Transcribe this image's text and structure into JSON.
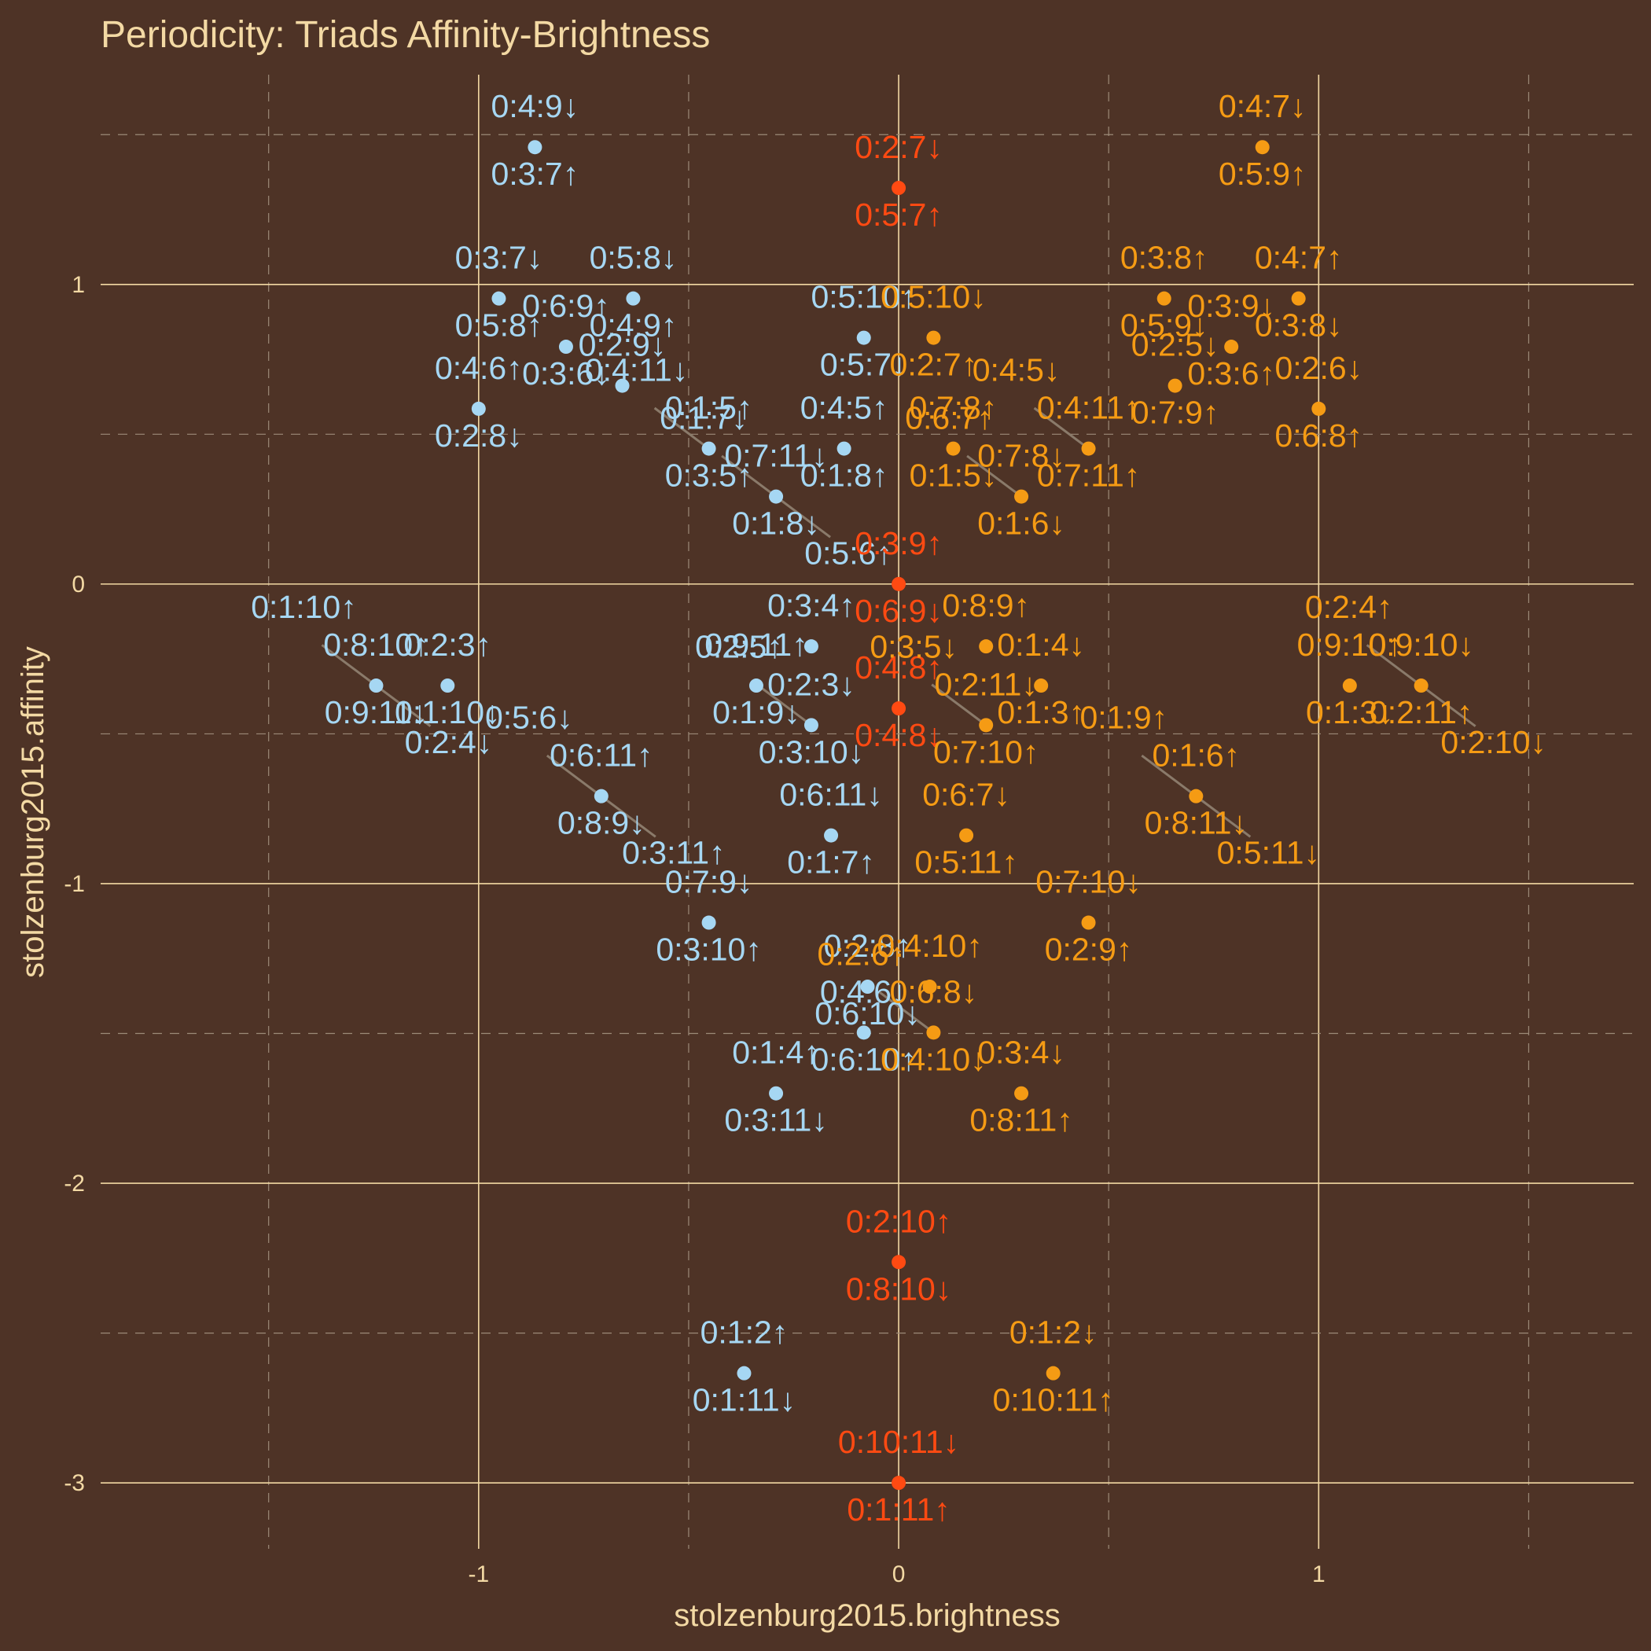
{
  "chart_data": {
    "type": "scatter",
    "title": "Periodicity: Triads Affinity-Brightness",
    "xlabel": "stolzenburg2015.brightness",
    "ylabel": "stolzenburg2015.affinity",
    "xlim": [
      -1.9,
      1.75
    ],
    "ylim": [
      -3.22,
      1.7
    ],
    "x_ticks": [
      {
        "value": -1,
        "label": "-1"
      },
      {
        "value": 0,
        "label": "0"
      },
      {
        "value": 1,
        "label": "1"
      }
    ],
    "y_ticks": [
      {
        "value": 1,
        "label": "1"
      },
      {
        "value": 0,
        "label": "0"
      },
      {
        "value": -1,
        "label": "-1"
      },
      {
        "value": -2,
        "label": "-2"
      },
      {
        "value": -3,
        "label": "-3"
      }
    ],
    "grid": true,
    "legend": "none",
    "colors": {
      "background": "#4e3326",
      "grid_major": "#f3d9a4",
      "grid_minor": "#9c8a78",
      "text": "#f3d9a4",
      "series_negative": "#a6d7f3",
      "series_zero": "#ff4a12",
      "series_positive": "#f59b14",
      "connector": "#8a7a6a"
    },
    "points": [
      {
        "x": -0.866,
        "y": 1.458,
        "color": "negative",
        "labels": [
          "0:4:9↓",
          "0:3:7↑"
        ]
      },
      {
        "x": -0.952,
        "y": 0.953,
        "color": "negative",
        "labels": [
          "0:3:7↓",
          "0:5:8↑"
        ]
      },
      {
        "x": -0.632,
        "y": 0.953,
        "color": "negative",
        "labels": [
          "0:5:8↓",
          "0:4:9↑"
        ]
      },
      {
        "x": -0.792,
        "y": 0.792,
        "color": "negative",
        "labels": [
          "0:6:9↑",
          "0:3:6↓"
        ]
      },
      {
        "x": -0.658,
        "y": 0.662,
        "color": "negative",
        "labels": [
          "0:2:9↓"
        ]
      },
      {
        "x": -1.0,
        "y": 0.585,
        "color": "negative",
        "labels": [
          "0:4:6↑",
          "0:2:8↓"
        ]
      },
      {
        "x": -0.452,
        "y": 0.452,
        "color": "negative",
        "labels": [
          "0:1:5↑",
          "0:3:5↑",
          "0:4:11↓"
        ]
      },
      {
        "x": -0.083,
        "y": 0.822,
        "color": "negative",
        "labels": [
          "0:5:10↑",
          "0:5:7↓"
        ]
      },
      {
        "x": -0.13,
        "y": 0.452,
        "color": "negative",
        "labels": [
          "0:4:5↑",
          "0:1:8↑"
        ]
      },
      {
        "x": -0.292,
        "y": 0.292,
        "color": "negative",
        "labels": [
          "0:7:11↓",
          "0:1:8↓",
          "0:1:7↓",
          "0:5:6↑"
        ]
      },
      {
        "x": -0.208,
        "y": -0.208,
        "color": "negative",
        "labels": [
          "0:3:4↑"
        ]
      },
      {
        "x": -1.244,
        "y": -0.339,
        "color": "negative",
        "labels": [
          "0:8:10↑",
          "0:9:11↓",
          "0:1:10↑",
          "0:2:4↓"
        ]
      },
      {
        "x": -1.074,
        "y": -0.339,
        "color": "negative",
        "labels": [
          "0:2:3↑",
          "0:1:10↓"
        ]
      },
      {
        "x": -0.339,
        "y": -0.339,
        "color": "negative",
        "labels": [
          "0:9:11↑",
          "0:1:9↓"
        ]
      },
      {
        "x": -0.208,
        "y": -0.471,
        "color": "negative",
        "labels": [
          "0:2:3↓",
          "0:3:10↓",
          "0:2:5↑"
        ]
      },
      {
        "x": -0.708,
        "y": -0.708,
        "color": "negative",
        "labels": [
          "0:6:11↑",
          "0:8:9↓",
          "0:5:6↓",
          "0:3:11↑"
        ]
      },
      {
        "x": -0.161,
        "y": -0.839,
        "color": "negative",
        "labels": [
          "0:6:11↓",
          "0:1:7↑"
        ]
      },
      {
        "x": -0.452,
        "y": -1.13,
        "color": "negative",
        "labels": [
          "0:7:9↓",
          "0:3:10↑"
        ]
      },
      {
        "x": -0.074,
        "y": -1.344,
        "color": "negative",
        "labels": [
          "0:2:8↑",
          "0:6:10↓"
        ]
      },
      {
        "x": -0.083,
        "y": -1.497,
        "color": "negative",
        "labels": [
          "0:4:6↓",
          "0:6:10↑"
        ]
      },
      {
        "x": -0.292,
        "y": -1.7,
        "color": "negative",
        "labels": [
          "0:1:4↑",
          "0:3:11↓"
        ]
      },
      {
        "x": -0.368,
        "y": -2.634,
        "color": "negative",
        "labels": [
          "0:1:2↑",
          "0:1:11↓"
        ]
      },
      {
        "x": 0.0,
        "y": 1.322,
        "color": "zero",
        "labels": [
          "0:2:7↓",
          "0:5:7↑"
        ]
      },
      {
        "x": 0.0,
        "y": 0.0,
        "color": "zero",
        "labels": [
          "0:3:9↑",
          "0:6:9↓"
        ]
      },
      {
        "x": 0.0,
        "y": -0.415,
        "color": "zero",
        "labels": [
          "0:4:8↑",
          "0:4:8↓"
        ]
      },
      {
        "x": 0.0,
        "y": -2.263,
        "color": "zero",
        "labels": [
          "0:2:10↑",
          "0:8:10↓"
        ]
      },
      {
        "x": 0.0,
        "y": -3.0,
        "color": "zero",
        "labels": [
          "0:10:11↓",
          "0:1:11↑"
        ]
      },
      {
        "x": 0.866,
        "y": 1.458,
        "color": "positive",
        "labels": [
          "0:4:7↓",
          "0:5:9↑"
        ]
      },
      {
        "x": 0.632,
        "y": 0.953,
        "color": "positive",
        "labels": [
          "0:3:8↑",
          "0:5:9↓"
        ]
      },
      {
        "x": 0.952,
        "y": 0.953,
        "color": "positive",
        "labels": [
          "0:4:7↑",
          "0:3:8↓"
        ]
      },
      {
        "x": 0.792,
        "y": 0.792,
        "color": "positive",
        "labels": [
          "0:3:9↓",
          "0:3:6↑"
        ]
      },
      {
        "x": 0.083,
        "y": 0.822,
        "color": "positive",
        "labels": [
          "0:5:10↓",
          "0:2:7↑"
        ]
      },
      {
        "x": 0.658,
        "y": 0.662,
        "color": "positive",
        "labels": [
          "0:2:5↓",
          "0:7:9↑"
        ]
      },
      {
        "x": 1.0,
        "y": 0.585,
        "color": "positive",
        "labels": [
          "0:2:6↓",
          "0:6:8↑"
        ]
      },
      {
        "x": 0.13,
        "y": 0.452,
        "color": "positive",
        "labels": [
          "0:7:8↑",
          "0:1:5↓"
        ]
      },
      {
        "x": 0.452,
        "y": 0.452,
        "color": "positive",
        "labels": [
          "0:4:11↑",
          "0:7:11↑",
          "0:4:5↓"
        ]
      },
      {
        "x": 0.292,
        "y": 0.292,
        "color": "positive",
        "labels": [
          "0:7:8↓",
          "0:1:6↓",
          "0:6:7↑"
        ]
      },
      {
        "x": 0.208,
        "y": -0.208,
        "color": "positive",
        "labels": [
          "0:8:9↑"
        ]
      },
      {
        "x": 0.339,
        "y": -0.339,
        "color": "positive",
        "labels": [
          "0:1:4↓",
          "0:1:3↑"
        ]
      },
      {
        "x": 1.074,
        "y": -0.339,
        "color": "positive",
        "labels": [
          "0:9:10↑",
          "0:1:3↓"
        ]
      },
      {
        "x": 1.244,
        "y": -0.339,
        "color": "positive",
        "labels": [
          "0:9:10↓",
          "0:2:11↑",
          "0:2:4↑",
          "0:2:10↓"
        ]
      },
      {
        "x": 0.208,
        "y": -0.471,
        "color": "positive",
        "labels": [
          "0:2:11↓",
          "0:7:10↑",
          "0:3:5↓"
        ]
      },
      {
        "x": 0.708,
        "y": -0.708,
        "color": "positive",
        "labels": [
          "0:1:6↑",
          "0:8:11↓",
          "0:1:9↑",
          "0:5:11↓"
        ]
      },
      {
        "x": 0.161,
        "y": -0.839,
        "color": "positive",
        "labels": [
          "0:6:7↓",
          "0:5:11↑"
        ]
      },
      {
        "x": 0.452,
        "y": -1.13,
        "color": "positive",
        "labels": [
          "0:7:10↓",
          "0:2:9↑"
        ]
      },
      {
        "x": 0.074,
        "y": -1.344,
        "color": "positive",
        "labels": [
          "0:4:10↑"
        ]
      },
      {
        "x": 0.083,
        "y": -1.497,
        "color": "positive",
        "labels": [
          "0:6:8↓",
          "0:4:10↓",
          "0:2:6↑"
        ]
      },
      {
        "x": 0.292,
        "y": -1.7,
        "color": "positive",
        "labels": [
          "0:3:4↓",
          "0:8:11↑"
        ]
      },
      {
        "x": 0.368,
        "y": -2.634,
        "color": "positive",
        "labels": [
          "0:1:2↓",
          "0:10:11↑"
        ]
      }
    ]
  }
}
